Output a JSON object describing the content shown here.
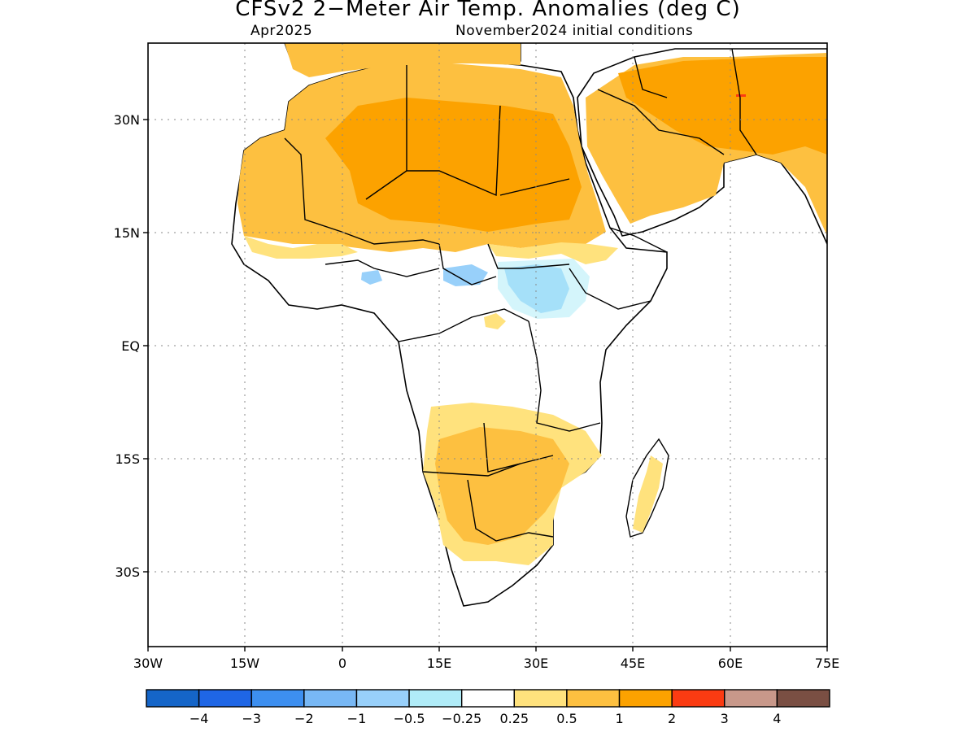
{
  "header": {
    "title": "CFSv2 2-Meter Air Temp. Anomalies (deg C)",
    "valid_month": "Apr2025",
    "init_conditions": "November2024 initial conditions"
  },
  "map": {
    "lat_labels": [
      "30N",
      "15N",
      "EQ",
      "15S",
      "30S"
    ],
    "lon_labels": [
      "30W",
      "15W",
      "0",
      "15E",
      "30E",
      "45E",
      "60E",
      "75E"
    ],
    "grid": "dotted"
  },
  "colorbar": {
    "labels": [
      "−4",
      "−3",
      "−2",
      "−1",
      "−0.5",
      "−0.25",
      "0.25",
      "0.5",
      "1",
      "2",
      "3",
      "4"
    ],
    "colors": [
      "#1565c8",
      "#1f66e5",
      "#3d8ff0",
      "#78b8f5",
      "#98d0fa",
      "#b0ecf8",
      "#ffffff",
      "#ffe27d",
      "#fdc040",
      "#fca200",
      "#fb3b12",
      "#c8988a",
      "#7a4f43"
    ]
  }
}
